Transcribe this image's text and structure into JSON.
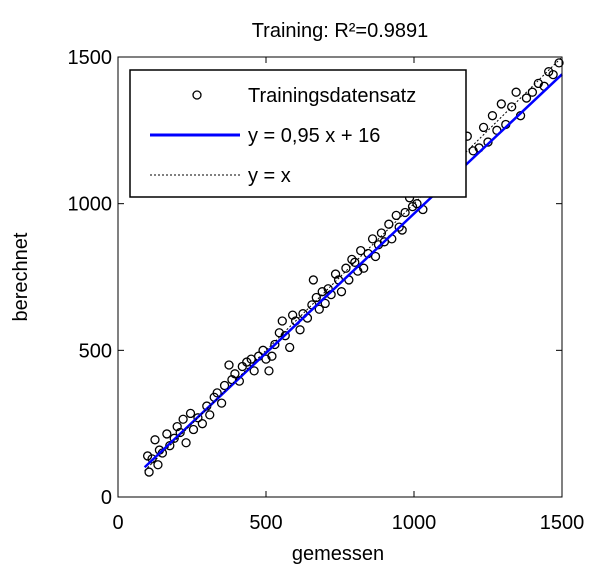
{
  "chart_data": {
    "type": "scatter",
    "title": "Training: R²=0.9891",
    "x_label": "gemessen",
    "y_label": "berechnet",
    "xlim": [
      0,
      1500
    ],
    "xticks": [
      0,
      500,
      1000,
      1500
    ],
    "ylim": [
      0,
      1500
    ],
    "yticks": [
      0,
      500,
      1000,
      1500
    ],
    "legend": "upper left",
    "series": [
      {
        "name": "Trainingsdatensatz",
        "type": "scatter",
        "color": "#000000",
        "x": [
          100,
          105,
          115,
          125,
          135,
          140,
          150,
          165,
          175,
          190,
          200,
          210,
          220,
          230,
          245,
          255,
          270,
          285,
          300,
          310,
          325,
          335,
          350,
          360,
          375,
          385,
          395,
          410,
          420,
          435,
          450,
          460,
          475,
          490,
          500,
          510,
          520,
          530,
          545,
          555,
          565,
          580,
          590,
          600,
          615,
          625,
          640,
          655,
          660,
          670,
          680,
          690,
          700,
          710,
          720,
          735,
          745,
          755,
          770,
          780,
          790,
          800,
          810,
          820,
          830,
          845,
          860,
          870,
          880,
          890,
          900,
          915,
          925,
          940,
          950,
          960,
          970,
          985,
          995,
          1010,
          1020,
          1030,
          1045,
          1060,
          1070,
          1085,
          1100,
          1120,
          1140,
          1160,
          1180,
          1200,
          1220,
          1235,
          1250,
          1265,
          1280,
          1295,
          1310,
          1330,
          1345,
          1360,
          1380,
          1400,
          1420,
          1440,
          1455,
          1470,
          1490
        ],
        "values": [
          140,
          85,
          130,
          195,
          110,
          160,
          150,
          215,
          175,
          200,
          240,
          220,
          265,
          185,
          285,
          230,
          270,
          250,
          310,
          280,
          340,
          355,
          320,
          380,
          450,
          400,
          420,
          395,
          445,
          460,
          470,
          430,
          480,
          500,
          470,
          430,
          480,
          520,
          560,
          600,
          550,
          510,
          620,
          600,
          570,
          625,
          610,
          655,
          740,
          680,
          640,
          700,
          660,
          710,
          690,
          760,
          740,
          700,
          780,
          740,
          810,
          800,
          770,
          840,
          780,
          830,
          880,
          820,
          860,
          900,
          870,
          930,
          880,
          960,
          920,
          910,
          970,
          1020,
          990,
          1000,
          1060,
          980,
          1050,
          1080,
          1040,
          1100,
          1130,
          1150,
          1170,
          1200,
          1230,
          1180,
          1190,
          1260,
          1210,
          1300,
          1250,
          1340,
          1270,
          1330,
          1380,
          1300,
          1360,
          1380,
          1410,
          1400,
          1450,
          1440,
          1480
        ]
      },
      {
        "name": "y = 0,95 x + 16",
        "type": "line",
        "color": "#0000ff",
        "x": [
          90,
          1500
        ],
        "values": [
          101.5,
          1441
        ]
      },
      {
        "name": "y = x",
        "type": "line",
        "color": "#000000",
        "dash": "dotted",
        "x": [
          90,
          1500
        ],
        "values": [
          90,
          1500
        ]
      }
    ]
  }
}
